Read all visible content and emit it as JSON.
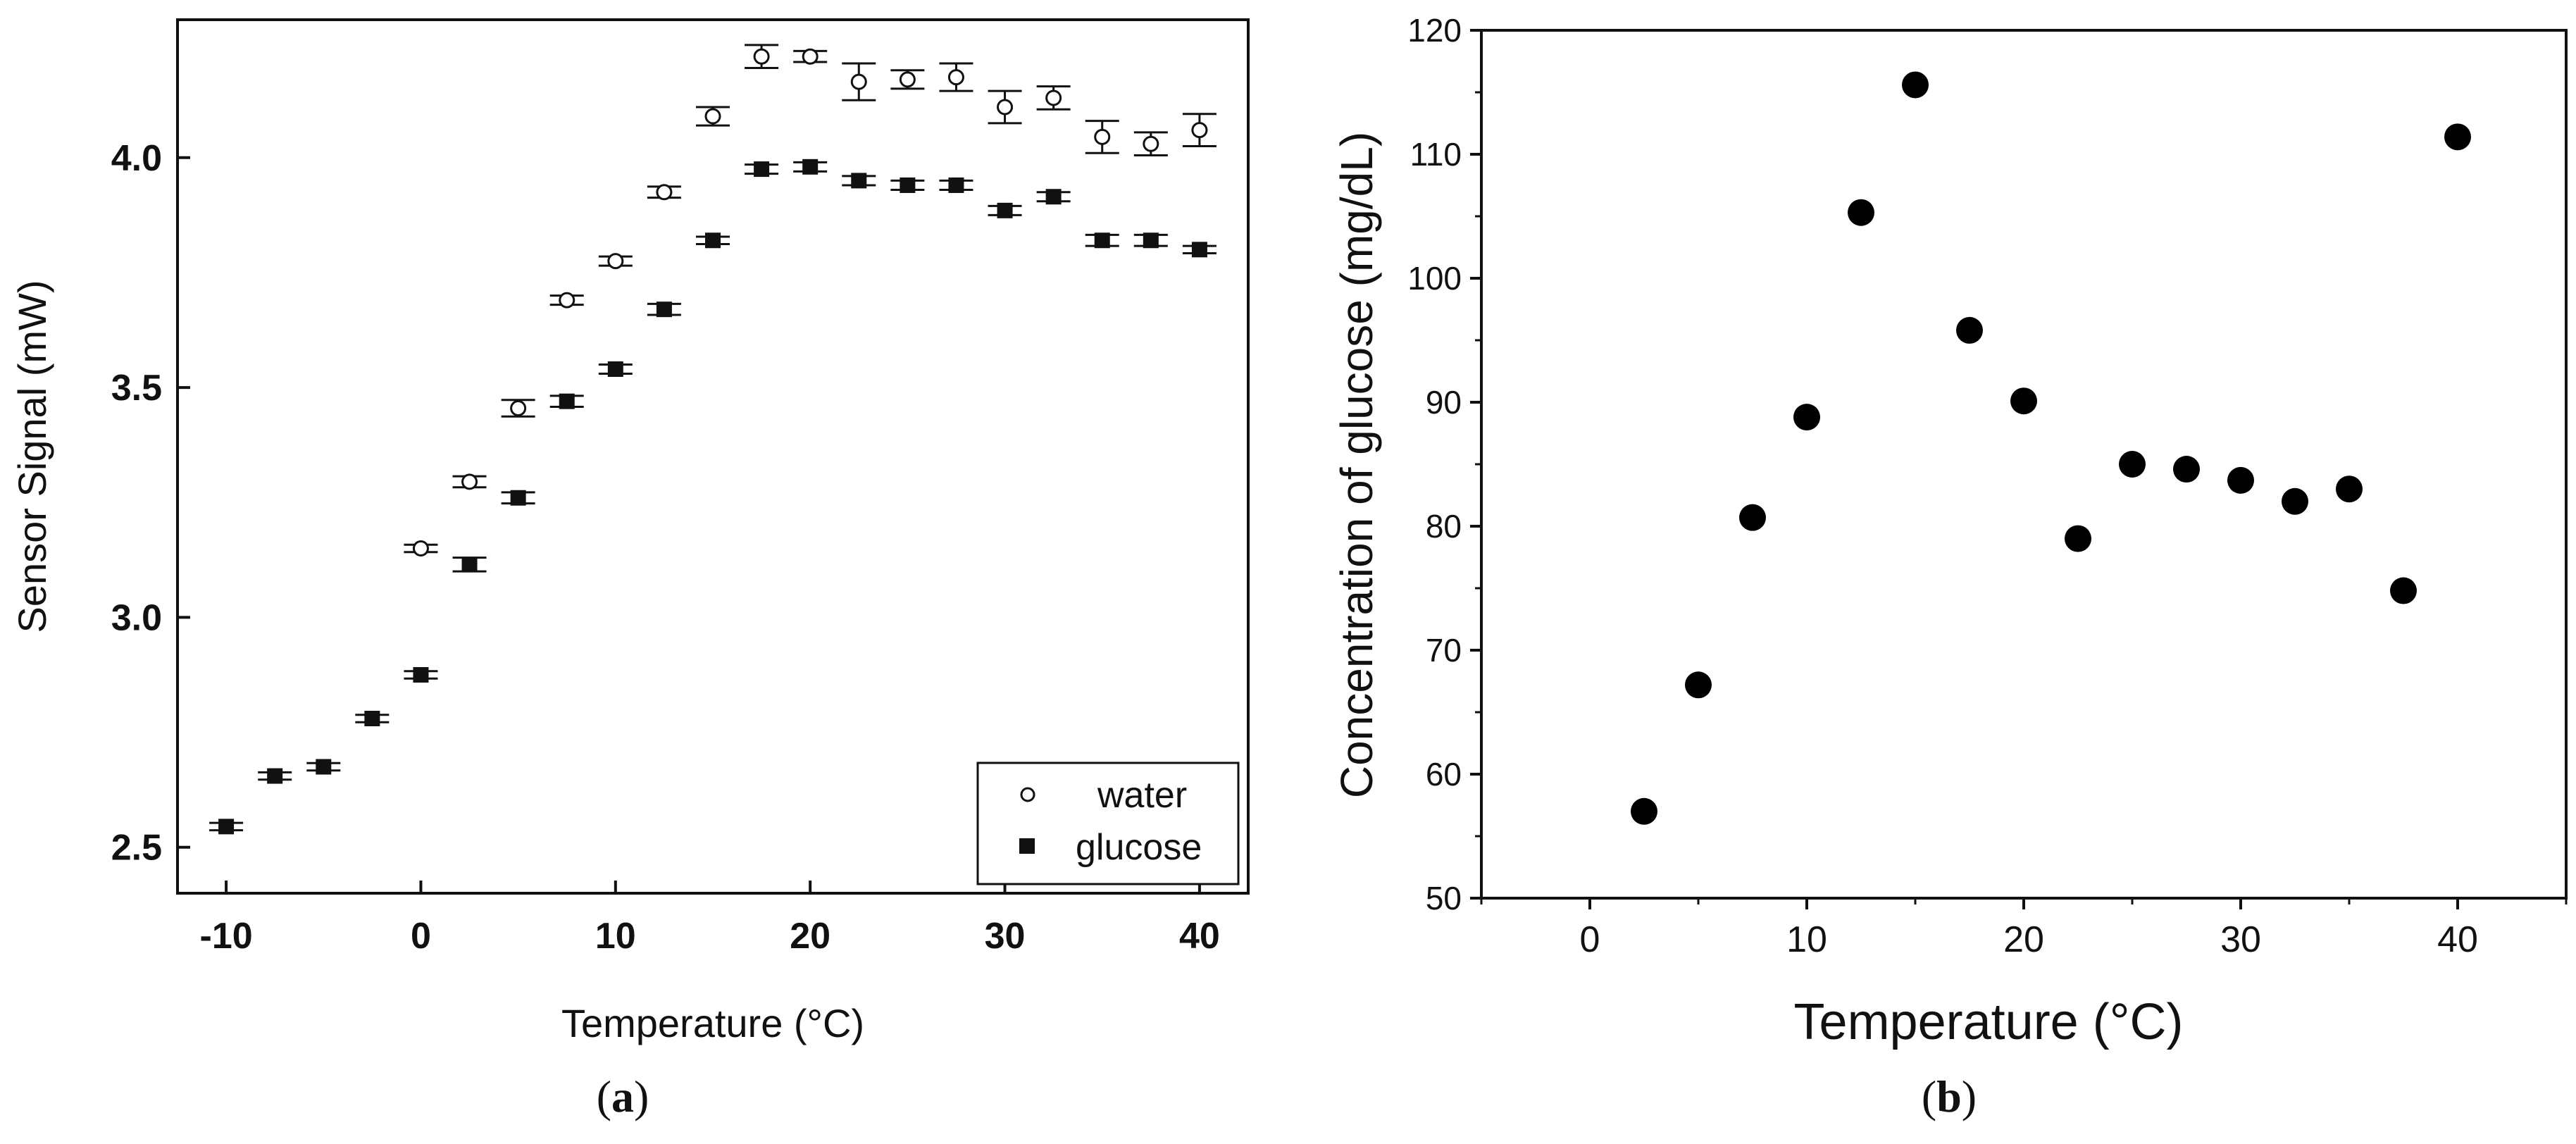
{
  "chart_data": [
    {
      "type": "scatter",
      "panel": "a",
      "caption_letter": "a",
      "xlabel": "Temperature (°C)",
      "ylabel": "Sensor Signal (mW)",
      "xlim": [
        -12.5,
        42.5
      ],
      "ylim": [
        2.4,
        4.3
      ],
      "xticks": [
        -10,
        0,
        10,
        20,
        30,
        40
      ],
      "yticks": [
        2.5,
        3.0,
        3.5,
        4.0
      ],
      "ytick_labels": [
        "2.5",
        "3.0",
        "3.5",
        "4.0"
      ],
      "legend_position": "bottom-right",
      "series": [
        {
          "name": "water",
          "marker": "open-circle",
          "x": [
            0,
            2.5,
            5,
            7.5,
            10,
            12.5,
            15,
            17.5,
            20,
            22.5,
            25,
            27.5,
            30,
            32.5,
            35,
            37.5,
            40
          ],
          "y": [
            3.15,
            3.295,
            3.455,
            3.69,
            3.775,
            3.925,
            4.09,
            4.22,
            4.22,
            4.165,
            4.17,
            4.175,
            4.11,
            4.13,
            4.045,
            4.03,
            4.06
          ],
          "err": [
            0.008,
            0.012,
            0.018,
            0.01,
            0.01,
            0.012,
            0.02,
            0.025,
            0.012,
            0.04,
            0.02,
            0.03,
            0.035,
            0.025,
            0.035,
            0.025,
            0.035
          ]
        },
        {
          "name": "glucose",
          "marker": "filled-square",
          "x": [
            -10,
            -7.5,
            -5,
            -2.5,
            0,
            2.5,
            5,
            7.5,
            10,
            12.5,
            15,
            17.5,
            20,
            22.5,
            25,
            27.5,
            30,
            32.5,
            35,
            37.5,
            40
          ],
          "y": [
            2.545,
            2.655,
            2.675,
            2.78,
            2.875,
            3.115,
            3.26,
            3.47,
            3.54,
            3.67,
            3.82,
            3.975,
            3.98,
            3.95,
            3.94,
            3.94,
            3.885,
            3.915,
            3.82,
            3.82,
            3.8
          ],
          "err": [
            0.008,
            0.008,
            0.008,
            0.008,
            0.008,
            0.015,
            0.012,
            0.012,
            0.01,
            0.012,
            0.008,
            0.01,
            0.01,
            0.01,
            0.01,
            0.01,
            0.01,
            0.01,
            0.012,
            0.012,
            0.008
          ]
        }
      ]
    },
    {
      "type": "scatter",
      "panel": "b",
      "caption_letter": "b",
      "xlabel": "Temperature (°C)",
      "ylabel": "Concentration of glucose (mg/dL)",
      "xlim": [
        -5,
        45
      ],
      "ylim": [
        50,
        120
      ],
      "xticks": [
        0,
        10,
        20,
        30,
        40
      ],
      "yticks": [
        50,
        60,
        70,
        80,
        90,
        100,
        110,
        120
      ],
      "series": [
        {
          "name": "glucose concentration",
          "marker": "filled-circle",
          "x": [
            2.5,
            5,
            7.5,
            10,
            12.5,
            15,
            17.5,
            20,
            22.5,
            25,
            27.5,
            30,
            32.5,
            35,
            37.5,
            40
          ],
          "y": [
            57,
            67.2,
            80.7,
            88.8,
            105.3,
            115.6,
            95.8,
            90.1,
            79,
            85,
            84.6,
            83.7,
            82,
            83,
            74.8,
            111.4
          ]
        }
      ]
    }
  ]
}
